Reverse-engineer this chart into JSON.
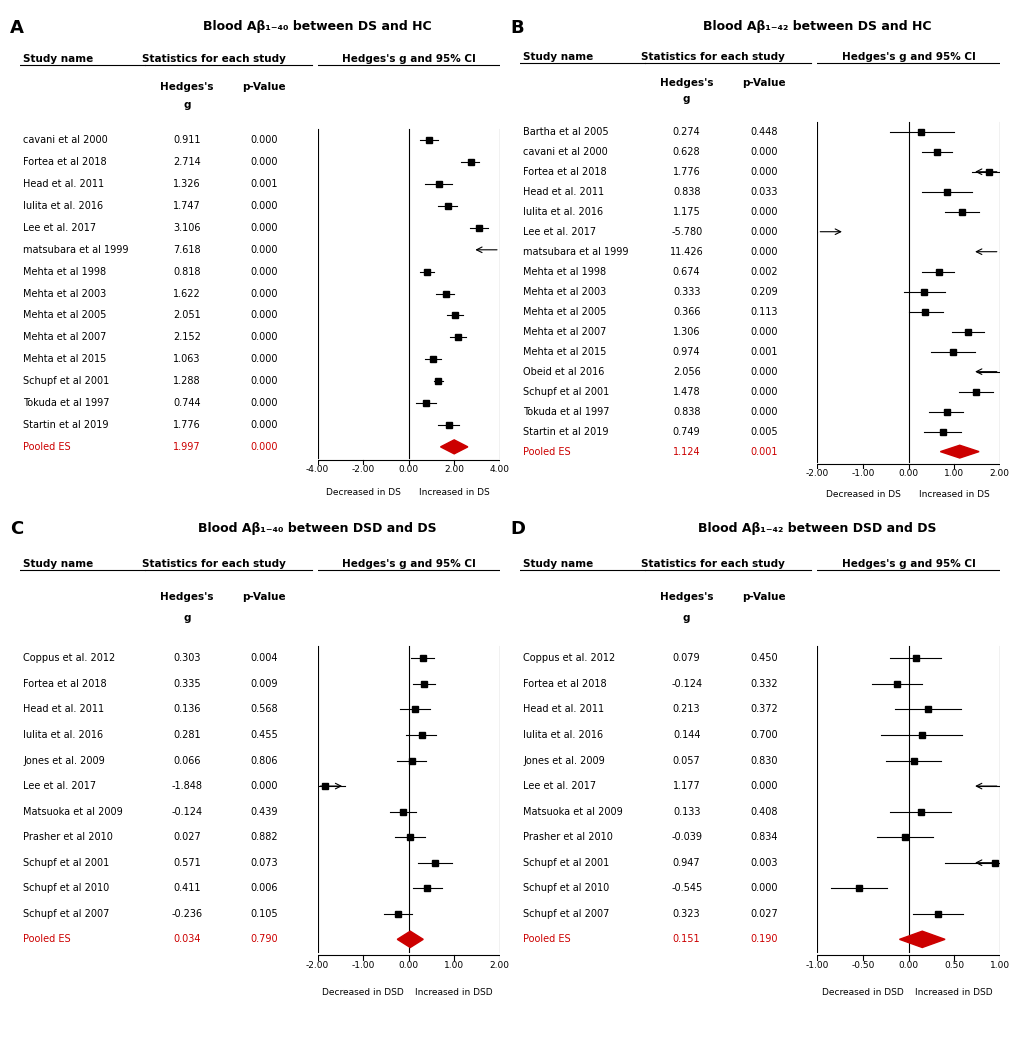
{
  "panel_A": {
    "title": "Blood Aβ₁₋₄₀ between DS and HC",
    "studies": [
      {
        "name": "cavani et al 2000",
        "g": 0.911,
        "p": 0.0,
        "ci_lo": 0.5,
        "ci_hi": 1.3
      },
      {
        "name": "Fortea et al 2018",
        "g": 2.714,
        "p": 0.0,
        "ci_lo": 2.3,
        "ci_hi": 3.1
      },
      {
        "name": "Head et al. 2011",
        "g": 1.326,
        "p": 0.001,
        "ci_lo": 0.7,
        "ci_hi": 1.9
      },
      {
        "name": "Iulita et al. 2016",
        "g": 1.747,
        "p": 0.0,
        "ci_lo": 1.3,
        "ci_hi": 2.1
      },
      {
        "name": "Lee et al. 2017",
        "g": 3.106,
        "p": 0.0,
        "ci_lo": 2.7,
        "ci_hi": 3.5
      },
      {
        "name": "matsubara et al 1999",
        "g": 7.618,
        "p": 0.0,
        "ci_lo": 4.0,
        "ci_hi": 11.0
      },
      {
        "name": "Mehta et al 1998",
        "g": 0.818,
        "p": 0.0,
        "ci_lo": 0.5,
        "ci_hi": 1.1
      },
      {
        "name": "Mehta et al 2003",
        "g": 1.622,
        "p": 0.0,
        "ci_lo": 1.2,
        "ci_hi": 2.0
      },
      {
        "name": "Mehta et al 2005",
        "g": 2.051,
        "p": 0.0,
        "ci_lo": 1.7,
        "ci_hi": 2.4
      },
      {
        "name": "Mehta et al 2007",
        "g": 2.152,
        "p": 0.0,
        "ci_lo": 1.8,
        "ci_hi": 2.5
      },
      {
        "name": "Mehta et al 2015",
        "g": 1.063,
        "p": 0.0,
        "ci_lo": 0.7,
        "ci_hi": 1.4
      },
      {
        "name": "Schupf et al 2001",
        "g": 1.288,
        "p": 0.0,
        "ci_lo": 1.1,
        "ci_hi": 1.5
      },
      {
        "name": "Tokuda et al 1997",
        "g": 0.744,
        "p": 0.0,
        "ci_lo": 0.3,
        "ci_hi": 1.2
      },
      {
        "name": "Startin et al 2019",
        "g": 1.776,
        "p": 0.0,
        "ci_lo": 1.3,
        "ci_hi": 2.2
      },
      {
        "name": "Pooled ES",
        "g": 1.997,
        "p": 0.0,
        "ci_lo": 1.4,
        "ci_hi": 2.6,
        "pooled": true
      }
    ],
    "forest_xlim": [
      -4.0,
      4.0
    ],
    "xticks": [
      -4.0,
      -2.0,
      0.0,
      2.0,
      4.0
    ],
    "xticklabels": [
      "-4.00",
      "-2.00",
      "0.00",
      "2.00",
      "4.00"
    ],
    "xlabel_left": "Decreased in DS",
    "xlabel_right": "Increased in DS"
  },
  "panel_B": {
    "title": "Blood Aβ₁₋₄₂ between DS and HC",
    "studies": [
      {
        "name": "Bartha et al 2005",
        "g": 0.274,
        "p": 0.448,
        "ci_lo": -0.4,
        "ci_hi": 1.0
      },
      {
        "name": "cavani et al 2000",
        "g": 0.628,
        "p": 0.0,
        "ci_lo": 0.3,
        "ci_hi": 0.95
      },
      {
        "name": "Fortea et al 2018",
        "g": 1.776,
        "p": 0.0,
        "ci_lo": 1.4,
        "ci_hi": 2.1
      },
      {
        "name": "Head et al. 2011",
        "g": 0.838,
        "p": 0.033,
        "ci_lo": 0.3,
        "ci_hi": 1.4
      },
      {
        "name": "Iulita et al. 2016",
        "g": 1.175,
        "p": 0.0,
        "ci_lo": 0.8,
        "ci_hi": 1.55
      },
      {
        "name": "Lee et al. 2017",
        "g": -5.78,
        "p": 0.0,
        "ci_lo": -7.0,
        "ci_hi": -4.5
      },
      {
        "name": "matsubara et al 1999",
        "g": 11.426,
        "p": 0.0,
        "ci_lo": 8.0,
        "ci_hi": 14.0
      },
      {
        "name": "Mehta et al 1998",
        "g": 0.674,
        "p": 0.002,
        "ci_lo": 0.3,
        "ci_hi": 1.0
      },
      {
        "name": "Mehta et al 2003",
        "g": 0.333,
        "p": 0.209,
        "ci_lo": -0.1,
        "ci_hi": 0.8
      },
      {
        "name": "Mehta et al 2005",
        "g": 0.366,
        "p": 0.113,
        "ci_lo": 0.0,
        "ci_hi": 0.75
      },
      {
        "name": "Mehta et al 2007",
        "g": 1.306,
        "p": 0.0,
        "ci_lo": 0.95,
        "ci_hi": 1.65
      },
      {
        "name": "Mehta et al 2015",
        "g": 0.974,
        "p": 0.001,
        "ci_lo": 0.5,
        "ci_hi": 1.45
      },
      {
        "name": "Obeid et al 2016",
        "g": 2.056,
        "p": 0.0,
        "ci_lo": 1.5,
        "ci_hi": 2.6
      },
      {
        "name": "Schupf et al 2001",
        "g": 1.478,
        "p": 0.0,
        "ci_lo": 1.1,
        "ci_hi": 1.85
      },
      {
        "name": "Tokuda et al 1997",
        "g": 0.838,
        "p": 0.0,
        "ci_lo": 0.45,
        "ci_hi": 1.2
      },
      {
        "name": "Startin et al 2019",
        "g": 0.749,
        "p": 0.005,
        "ci_lo": 0.35,
        "ci_hi": 1.15
      },
      {
        "name": "Pooled ES",
        "g": 1.124,
        "p": 0.001,
        "ci_lo": 0.7,
        "ci_hi": 1.55,
        "pooled": true
      }
    ],
    "forest_xlim": [
      -2.0,
      2.0
    ],
    "xticks": [
      -2.0,
      -1.0,
      0.0,
      1.0,
      2.0
    ],
    "xticklabels": [
      "-2.00",
      "-1.00",
      "0.00",
      "1.00",
      "2.00"
    ],
    "xlabel_left": "Decreased in DS",
    "xlabel_right": "Increased in DS"
  },
  "panel_C": {
    "title": "Blood Aβ₁₋₄₀ between DSD and DS",
    "studies": [
      {
        "name": "Coppus et al. 2012",
        "g": 0.303,
        "p": 0.004,
        "ci_lo": 0.05,
        "ci_hi": 0.55
      },
      {
        "name": "Fortea et al 2018",
        "g": 0.335,
        "p": 0.009,
        "ci_lo": 0.1,
        "ci_hi": 0.57
      },
      {
        "name": "Head et al. 2011",
        "g": 0.136,
        "p": 0.568,
        "ci_lo": -0.2,
        "ci_hi": 0.47
      },
      {
        "name": "Iulita et al. 2016",
        "g": 0.281,
        "p": 0.455,
        "ci_lo": -0.05,
        "ci_hi": 0.61
      },
      {
        "name": "Jones et al. 2009",
        "g": 0.066,
        "p": 0.806,
        "ci_lo": -0.25,
        "ci_hi": 0.38
      },
      {
        "name": "Lee et al. 2017",
        "g": -1.848,
        "p": 0.0,
        "ci_lo": -2.3,
        "ci_hi": -1.4
      },
      {
        "name": "Matsuoka et al 2009",
        "g": -0.124,
        "p": 0.439,
        "ci_lo": -0.4,
        "ci_hi": 0.15
      },
      {
        "name": "Prasher et al 2010",
        "g": 0.027,
        "p": 0.882,
        "ci_lo": -0.3,
        "ci_hi": 0.35
      },
      {
        "name": "Schupf et al 2001",
        "g": 0.571,
        "p": 0.073,
        "ci_lo": 0.2,
        "ci_hi": 0.94
      },
      {
        "name": "Schupf et al 2010",
        "g": 0.411,
        "p": 0.006,
        "ci_lo": 0.1,
        "ci_hi": 0.72
      },
      {
        "name": "Schupf et al 2007",
        "g": -0.236,
        "p": 0.105,
        "ci_lo": -0.55,
        "ci_hi": 0.08
      },
      {
        "name": "Pooled ES",
        "g": 0.034,
        "p": 0.79,
        "ci_lo": -0.25,
        "ci_hi": 0.32,
        "pooled": true
      }
    ],
    "forest_xlim": [
      -2.0,
      2.0
    ],
    "xticks": [
      -2.0,
      -1.0,
      0.0,
      1.0,
      2.0
    ],
    "xticklabels": [
      "-2.00",
      "-1.00",
      "0.00",
      "1.00",
      "2.00"
    ],
    "xlabel_left": "Decreased in DSD",
    "xlabel_right": "Increased in DSD"
  },
  "panel_D": {
    "title": "Blood Aβ₁₋₄₂ between DSD and DS",
    "studies": [
      {
        "name": "Coppus et al. 2012",
        "g": 0.079,
        "p": 0.45,
        "ci_lo": -0.2,
        "ci_hi": 0.36
      },
      {
        "name": "Fortea et al 2018",
        "g": -0.124,
        "p": 0.332,
        "ci_lo": -0.4,
        "ci_hi": 0.15
      },
      {
        "name": "Head et al. 2011",
        "g": 0.213,
        "p": 0.372,
        "ci_lo": -0.15,
        "ci_hi": 0.58
      },
      {
        "name": "Iulita et al. 2016",
        "g": 0.144,
        "p": 0.7,
        "ci_lo": -0.3,
        "ci_hi": 0.59
      },
      {
        "name": "Jones et al. 2009",
        "g": 0.057,
        "p": 0.83,
        "ci_lo": -0.25,
        "ci_hi": 0.36
      },
      {
        "name": "Lee et al. 2017",
        "g": 1.177,
        "p": 0.0,
        "ci_lo": 0.75,
        "ci_hi": 1.6
      },
      {
        "name": "Matsuoka et al 2009",
        "g": 0.133,
        "p": 0.408,
        "ci_lo": -0.2,
        "ci_hi": 0.47
      },
      {
        "name": "Prasher et al 2010",
        "g": -0.039,
        "p": 0.834,
        "ci_lo": -0.35,
        "ci_hi": 0.27
      },
      {
        "name": "Schupf et al 2001",
        "g": 0.947,
        "p": 0.003,
        "ci_lo": 0.4,
        "ci_hi": 1.5
      },
      {
        "name": "Schupf et al 2010",
        "g": -0.545,
        "p": 0.0,
        "ci_lo": -0.85,
        "ci_hi": -0.24
      },
      {
        "name": "Schupf et al 2007",
        "g": 0.323,
        "p": 0.027,
        "ci_lo": 0.05,
        "ci_hi": 0.6
      },
      {
        "name": "Pooled ES",
        "g": 0.151,
        "p": 0.19,
        "ci_lo": -0.1,
        "ci_hi": 0.4,
        "pooled": true
      }
    ],
    "forest_xlim": [
      -1.0,
      1.0
    ],
    "xticks": [
      -1.0,
      -0.5,
      0.0,
      0.5,
      1.0
    ],
    "xticklabels": [
      "-1.00",
      "-0.50",
      "0.00",
      "0.50",
      "1.00"
    ],
    "xlabel_left": "Decreased in DSD",
    "xlabel_right": "Increased in DSD"
  },
  "colors": {
    "pooled_diamond": "#cc0000",
    "study_square": "#000000",
    "ci_line": "#000000",
    "text_normal": "#000000",
    "text_pooled": "#cc0000"
  },
  "label_fontsize": 7.0,
  "title_fontsize": 9.0,
  "header_fontsize": 7.5,
  "panel_label_fontsize": 13
}
